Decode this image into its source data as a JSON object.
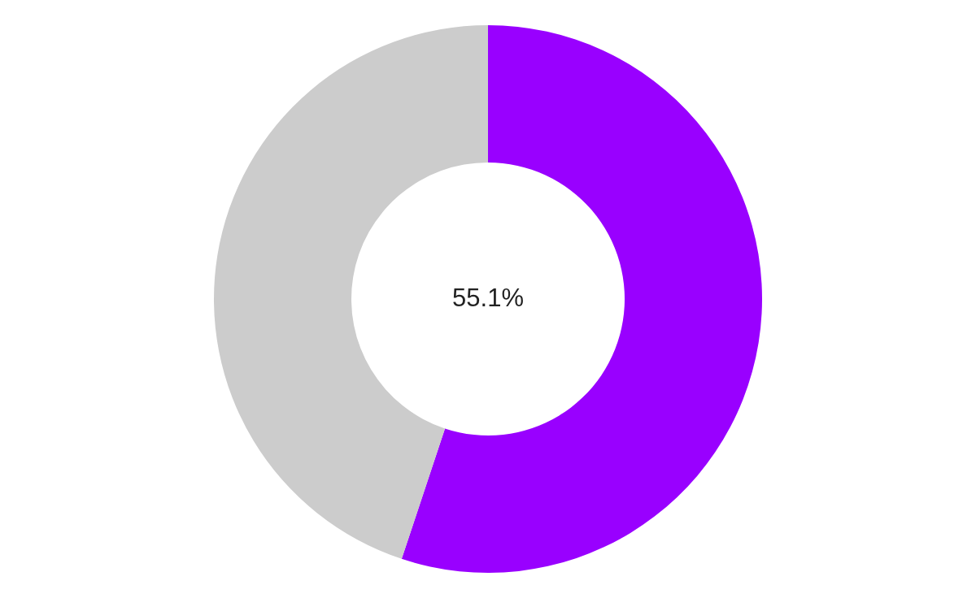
{
  "chart_data": {
    "type": "donut",
    "categories": [
      null,
      null
    ],
    "values": [
      55.1,
      44.9
    ],
    "colors": [
      "#9900ff",
      "#cccccc"
    ],
    "annotations": [
      "55.1%"
    ]
  }
}
